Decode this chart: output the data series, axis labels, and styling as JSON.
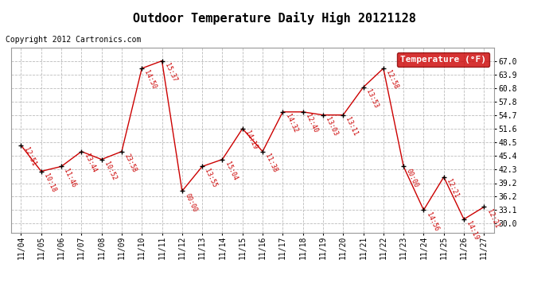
{
  "title": "Outdoor Temperature Daily High 20121128",
  "copyright": "Copyright 2012 Cartronics.com",
  "legend_label": "Temperature (°F)",
  "dates": [
    "11/04",
    "11/05",
    "11/06",
    "11/07",
    "11/08",
    "11/09",
    "11/10",
    "11/11",
    "11/12",
    "11/13",
    "11/14",
    "11/15",
    "11/16",
    "11/17",
    "11/18",
    "11/19",
    "11/20",
    "11/21",
    "11/22",
    "11/23",
    "11/24",
    "11/25",
    "11/26",
    "11/27"
  ],
  "values": [
    47.8,
    41.9,
    43.0,
    46.4,
    44.6,
    46.4,
    65.3,
    67.0,
    37.4,
    43.0,
    44.6,
    51.6,
    46.4,
    55.4,
    55.4,
    54.7,
    54.7,
    61.0,
    65.3,
    43.0,
    33.1,
    40.6,
    31.0,
    33.8
  ],
  "times": [
    "12:51",
    "10:18",
    "11:46",
    "13:44",
    "10:52",
    "23:58",
    "14:50",
    "15:37",
    "00:00",
    "13:55",
    "15:04",
    "14:19",
    "11:38",
    "14:32",
    "12:40",
    "13:03",
    "13:11",
    "13:53",
    "12:58",
    "00:00",
    "14:56",
    "12:21",
    "14:19",
    "12:21"
  ],
  "ylim": [
    28.0,
    70.0
  ],
  "yticks": [
    30.0,
    33.1,
    36.2,
    39.2,
    42.3,
    45.4,
    48.5,
    51.6,
    54.7,
    57.8,
    60.8,
    63.9,
    67.0
  ],
  "line_color": "#cc0000",
  "marker_color": "#000000",
  "title_fontsize": 11,
  "copyright_fontsize": 7,
  "annotation_fontsize": 6,
  "tick_fontsize": 7,
  "background_color": "#ffffff",
  "grid_color": "#bbbbbb",
  "legend_bg": "#cc0000",
  "legend_text_color": "#ffffff",
  "legend_fontsize": 8
}
